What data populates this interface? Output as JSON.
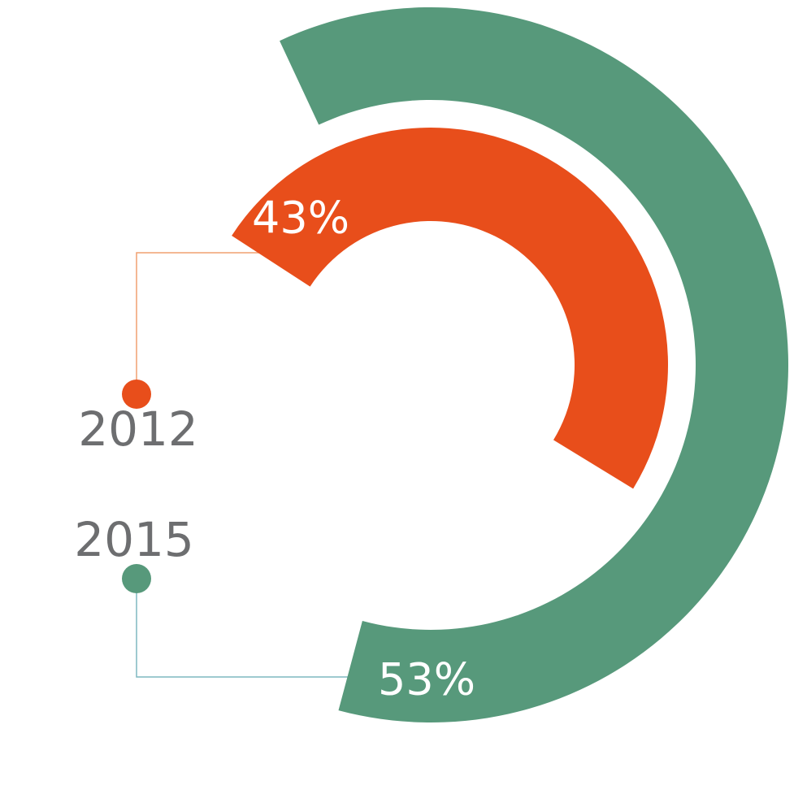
{
  "chart_data": {
    "type": "radial-bar",
    "categories": [
      "2012",
      "2015"
    ],
    "values": [
      43,
      53
    ],
    "value_labels": [
      "43%",
      "53%"
    ],
    "colors": [
      "#e84e1b",
      "#57997b"
    ]
  }
}
